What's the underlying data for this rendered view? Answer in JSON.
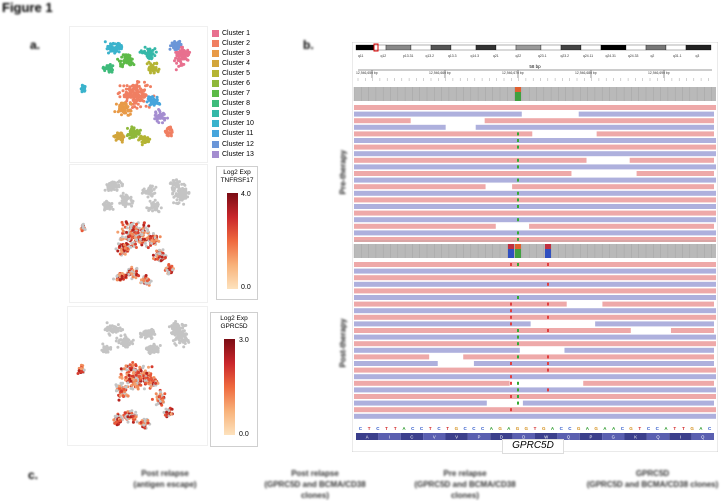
{
  "figure": {
    "title": "Figure 1",
    "panel_a_label": "a.",
    "panel_b_label": "b.",
    "panel_c_label": "c."
  },
  "tsne": {
    "clusters": [
      {
        "label": "Cluster 1",
        "color": "#e8708f"
      },
      {
        "label": "Cluster 2",
        "color": "#f07f62"
      },
      {
        "label": "Cluster 3",
        "color": "#e89a47"
      },
      {
        "label": "Cluster 4",
        "color": "#d2a53b"
      },
      {
        "label": "Cluster 5",
        "color": "#b4b434"
      },
      {
        "label": "Cluster 6",
        "color": "#8fb83a"
      },
      {
        "label": "Cluster 7",
        "color": "#5cba47"
      },
      {
        "label": "Cluster 8",
        "color": "#3ebb7b"
      },
      {
        "label": "Cluster 9",
        "color": "#35b8a8"
      },
      {
        "label": "Cluster 10",
        "color": "#3ab3cc"
      },
      {
        "label": "Cluster 11",
        "color": "#46a5dc"
      },
      {
        "label": "Cluster 12",
        "color": "#6b96d8"
      },
      {
        "label": "Cluster 13",
        "color": "#a48dd0"
      }
    ],
    "feature_plots": [
      {
        "gene": "TNFRSF17",
        "title_line1": "Log2 Exp",
        "max_label": "4.0",
        "min_label": "0.0",
        "max": 4.0,
        "min": 0.0
      },
      {
        "gene": "GPRC5D",
        "title_line1": "Log2 Exp",
        "max_label": "3.0",
        "min_label": "0.0",
        "max": 3.0,
        "min": 0.0
      }
    ]
  },
  "igv": {
    "region_width": "58 bp",
    "ruler_ticks": [
      "12,946,650 bp",
      "12,946,660 bp",
      "12,946,670 bp",
      "12,946,680 bp",
      "12,946,690 bp"
    ],
    "cytobands": [
      "q11",
      "q12",
      "p13.31",
      "q13.2",
      "q13.3",
      "q14.3",
      "q21",
      "q22",
      "q23.1",
      "q23.2",
      "q24.11",
      "q24.31",
      "q24.33",
      "q2",
      "q31.1",
      "q3"
    ],
    "track_labels": [
      "Pre-therapy",
      "Post-therapy"
    ],
    "sequence": [
      "C",
      "T",
      "C",
      "T",
      "T",
      "A",
      "C",
      "C",
      "T",
      "C",
      "T",
      "G",
      "C",
      "C",
      "C",
      "A",
      "G",
      "A",
      "G",
      "G",
      "T",
      "G",
      "A",
      "C",
      "C",
      "G",
      "A",
      "G",
      "A",
      "A",
      "C",
      "G",
      "T",
      "C",
      "C",
      "A",
      "T",
      "T",
      "G",
      "A",
      "C"
    ],
    "amino_acids": [
      "A",
      "I",
      "C",
      "V",
      "V",
      "P",
      "D",
      "D",
      "W",
      "Q",
      "P",
      "G",
      "K",
      "Q",
      "I",
      "Q"
    ],
    "gene_name": "GPRC5D"
  },
  "panel_c": {
    "columns": [
      {
        "line1": "Post relapse",
        "line2": "(antigen escape)"
      },
      {
        "line1": "Post relapse",
        "line2": "(GPRC5D and BCMA/CD38 clones)"
      },
      {
        "line1": "Pre relapse",
        "line2": "(GPRC5D and BCMA/CD38 clones)"
      },
      {
        "line1": "GPRC5D",
        "line2": "(GPRC5D and BCMA/CD38 clones)"
      }
    ]
  }
}
